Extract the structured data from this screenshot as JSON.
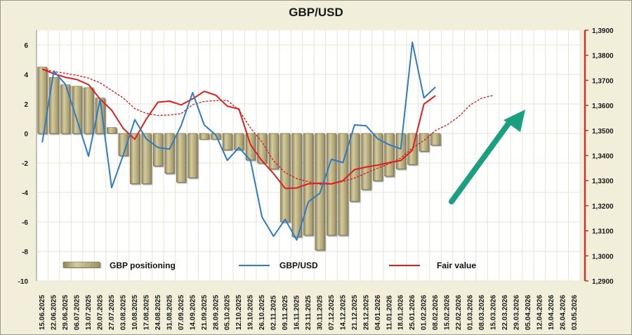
{
  "chart_data": {
    "type": "bar+line",
    "title": "GBP/USD",
    "left_axis": {
      "min": -10,
      "max": 7,
      "ticks": [
        6,
        4,
        2,
        0,
        -2,
        -4,
        -6,
        -8,
        -10
      ]
    },
    "right_axis": {
      "min": 1.29,
      "max": 1.39,
      "ticks": [
        "1,3900",
        "1,3800",
        "1,3700",
        "1,3600",
        "1,3500",
        "1,3400",
        "1,3300",
        "1,3200",
        "1,3100",
        "1,3000",
        "1,2900"
      ]
    },
    "x_labels": [
      "15.06.2025",
      "22.06.2025",
      "29.06.2025",
      "06.07.2025",
      "13.07.2025",
      "20.07.2025",
      "27.07.2025",
      "03.08.2025",
      "10.08.2025",
      "17.08.2025",
      "24.08.2025",
      "31.08.2025",
      "07.09.2025",
      "14.09.2025",
      "21.09.2025",
      "28.09.2025",
      "05.10.2025",
      "12.10.2025",
      "19.10.2025",
      "26.10.2025",
      "02.11.2025",
      "09.11.2025",
      "16.11.2025",
      "23.11.2025",
      "30.11.2025",
      "07.12.2025",
      "14.12.2025",
      "21.12.2025",
      "28.12.2025",
      "04.01.2026",
      "11.01.2026",
      "18.01.2026",
      "25.01.2026",
      "01.02.2026",
      "08.02.2026",
      "15.02.2026",
      "22.02.2026",
      "01.03.2026",
      "08.03.2026",
      "15.03.2026",
      "22.03.2026",
      "29.03.2026",
      "05.04.2026",
      "12.04.2026",
      "19.04.2026",
      "26.04.2026",
      "03.05.2026"
    ],
    "series": [
      {
        "name": "GBP positioning",
        "axis": "left",
        "type": "bar",
        "color": "#B0A573",
        "values": [
          4.5,
          3.8,
          3.3,
          3.2,
          3.1,
          2.4,
          0.4,
          -1.5,
          -3.4,
          -3.4,
          -2.2,
          -2.7,
          -3.3,
          -3.0,
          -0.4,
          -0.4,
          -1.1,
          -1.1,
          -1.8,
          -2.0,
          -2.4,
          -6.0,
          -7.0,
          -6.9,
          -7.9,
          -6.9,
          -6.9,
          -4.6,
          -3.8,
          -3.2,
          -2.9,
          -2.4,
          -2.1,
          -1.2,
          -0.8
        ]
      },
      {
        "name": "GBP/USD",
        "axis": "right",
        "type": "line",
        "color": "#2E7BC4",
        "values": [
          1.3453,
          1.3737,
          1.3684,
          1.3543,
          1.3397,
          1.3624,
          1.3272,
          1.3402,
          1.3543,
          1.3466,
          1.3432,
          1.3426,
          1.3519,
          1.3651,
          1.3522,
          1.3482,
          1.3381,
          1.3432,
          1.3381,
          1.3155,
          1.3078,
          1.3146,
          1.3063,
          1.3215,
          1.325,
          1.3385,
          1.3372,
          1.3522,
          1.3519,
          1.3467,
          1.3443,
          1.3427,
          1.3852,
          1.363,
          1.3673
        ]
      },
      {
        "name": "Fair value",
        "axis": "right",
        "type": "line",
        "color": "#E01E1E",
        "values": [
          1.3745,
          1.3726,
          1.3712,
          1.3703,
          1.3683,
          1.3625,
          1.3581,
          1.3508,
          1.3465,
          1.3546,
          1.3613,
          1.3617,
          1.3602,
          1.3626,
          1.3656,
          1.3641,
          1.3597,
          1.3586,
          1.3443,
          1.3379,
          1.3328,
          1.3269,
          1.3271,
          1.3287,
          1.329,
          1.3287,
          1.33,
          1.3344,
          1.3354,
          1.3362,
          1.3372,
          1.338,
          1.3421,
          1.3605,
          1.3639
        ]
      },
      {
        "name": "Fair value projection",
        "axis": "right",
        "type": "dashed-line",
        "color": "#E01E1E",
        "values": [
          1.3745,
          1.3735,
          1.3728,
          1.372,
          1.3709,
          1.369,
          1.366,
          1.363,
          1.3587,
          1.3568,
          1.356,
          1.3562,
          1.3567,
          1.3603,
          1.3616,
          1.3619,
          1.362,
          1.3582,
          1.351,
          1.3454,
          1.3379,
          1.3332,
          1.3308,
          1.3296,
          1.3285,
          1.3286,
          1.3297,
          1.331,
          1.333,
          1.335,
          1.3367,
          1.339,
          1.343,
          1.346,
          1.35,
          1.3522,
          1.3555,
          1.3602,
          1.3629,
          1.364
        ]
      }
    ],
    "legend": [
      "GBP positioning",
      "GBP/USD",
      "Fair value"
    ],
    "annotation": {
      "type": "arrow",
      "direction": "up-right",
      "color": "#1BA07F"
    },
    "grid": true,
    "plot_background": "#FFFFFF",
    "frame_background": "#F1EFD9"
  }
}
